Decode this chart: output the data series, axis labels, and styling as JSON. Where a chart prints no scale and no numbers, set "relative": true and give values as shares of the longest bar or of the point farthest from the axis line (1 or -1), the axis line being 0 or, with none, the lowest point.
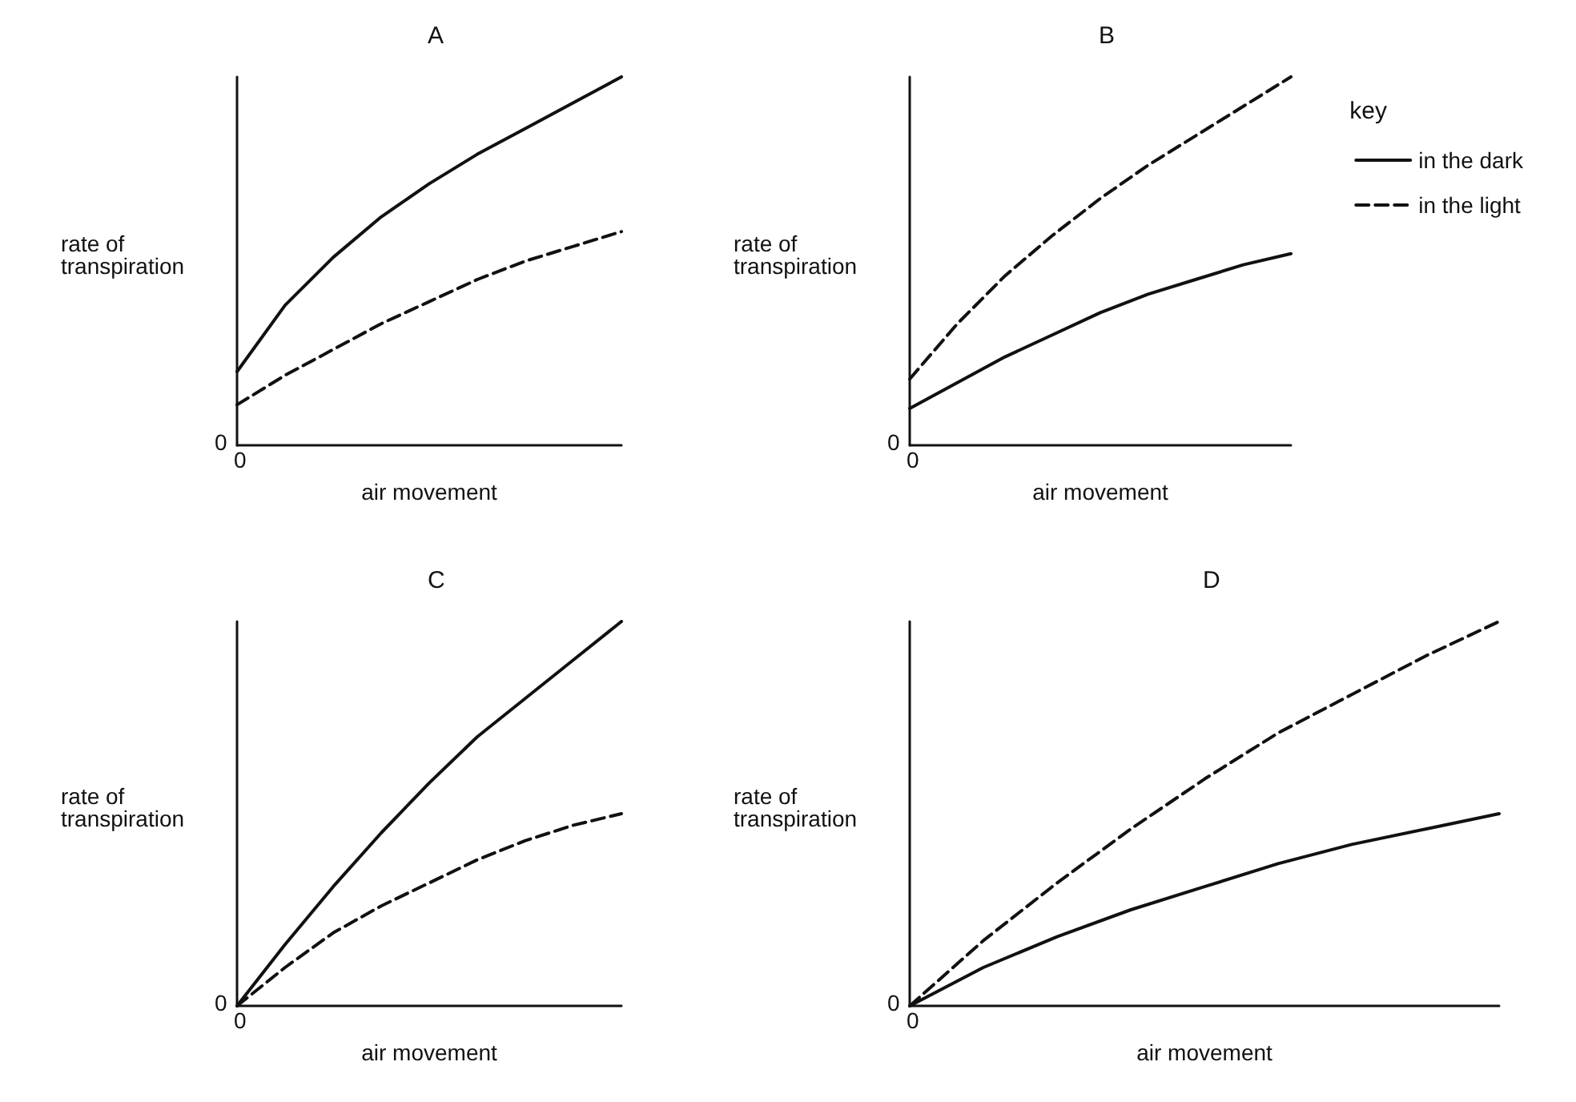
{
  "chart_data": [
    {
      "type": "line",
      "title": "A",
      "xlabel": "air movement",
      "ylabel": "rate of transpiration",
      "relative": true,
      "categories": [
        null,
        null,
        null,
        null,
        null,
        null,
        null,
        null,
        null
      ],
      "annotations": [
        "0",
        "0"
      ],
      "legend": false,
      "marker": "none",
      "series": [
        {
          "color": "#111111",
          "line_style": "solid",
          "values": [
            0.2,
            0.38,
            0.51,
            0.62,
            0.71,
            0.79,
            0.86,
            0.93,
            1.0
          ]
        },
        {
          "color": "#111111",
          "line_style": "dashed",
          "values": [
            0.11,
            0.19,
            0.26,
            0.33,
            0.39,
            0.45,
            0.5,
            0.54,
            0.58
          ]
        }
      ]
    },
    {
      "type": "line",
      "title": "B",
      "xlabel": "air movement",
      "ylabel": "rate of transpiration",
      "relative": true,
      "categories": [
        null,
        null,
        null,
        null,
        null,
        null,
        null,
        null,
        null
      ],
      "annotations": [
        "0",
        "0"
      ],
      "legend": "right",
      "legend_title": "key",
      "marker": "none",
      "series": [
        {
          "name": "in the dark",
          "color": "#111111",
          "line_style": "solid",
          "values": [
            0.1,
            0.17,
            0.24,
            0.3,
            0.36,
            0.41,
            0.45,
            0.49,
            0.52
          ]
        },
        {
          "name": "in the light",
          "color": "#111111",
          "line_style": "dashed",
          "values": [
            0.18,
            0.33,
            0.46,
            0.57,
            0.67,
            0.76,
            0.84,
            0.92,
            1.0
          ]
        }
      ]
    },
    {
      "type": "line",
      "title": "C",
      "xlabel": "air movement",
      "ylabel": "rate of transpiration",
      "relative": true,
      "categories": [
        null,
        null,
        null,
        null,
        null,
        null,
        null,
        null,
        null
      ],
      "annotations": [
        "0",
        "0"
      ],
      "legend": false,
      "marker": "none",
      "series": [
        {
          "color": "#111111",
          "line_style": "solid",
          "values": [
            0,
            0.16,
            0.31,
            0.45,
            0.58,
            0.7,
            0.8,
            0.9,
            1.0
          ]
        },
        {
          "color": "#111111",
          "line_style": "dashed",
          "values": [
            0,
            0.1,
            0.19,
            0.26,
            0.32,
            0.38,
            0.43,
            0.47,
            0.5
          ]
        }
      ]
    },
    {
      "type": "line",
      "title": "D",
      "xlabel": "air movement",
      "ylabel": "rate of transpiration",
      "relative": true,
      "categories": [
        null,
        null,
        null,
        null,
        null,
        null,
        null,
        null,
        null
      ],
      "annotations": [
        "0",
        "0"
      ],
      "legend": false,
      "marker": "none",
      "series": [
        {
          "color": "#111111",
          "line_style": "solid",
          "values": [
            0,
            0.1,
            0.18,
            0.25,
            0.31,
            0.37,
            0.42,
            0.46,
            0.5
          ]
        },
        {
          "color": "#111111",
          "line_style": "dashed",
          "values": [
            0,
            0.17,
            0.32,
            0.46,
            0.59,
            0.71,
            0.81,
            0.91,
            1.0
          ]
        }
      ]
    }
  ]
}
